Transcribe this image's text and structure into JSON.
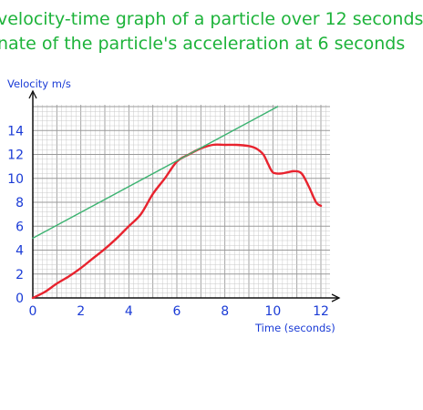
{
  "heading": {
    "line1": "velocity-time graph of a particle over 12 seconds",
    "line2": "nate of the particle's acceleration at 6 seconds"
  },
  "colors": {
    "heading": "#1db33a",
    "labels": "#1a3bd6",
    "curve": "#e8232e",
    "tangent": "#3cb371",
    "grid_minor": "#c8c8c8",
    "grid_major": "#9a9a9a",
    "axes": "#111111"
  },
  "chart_data": {
    "type": "line",
    "title": "",
    "xlabel": "Time (seconds)",
    "ylabel": "Velocity m/s",
    "xlim": [
      0,
      12
    ],
    "ylim": [
      0,
      16
    ],
    "grid": true,
    "x_ticks": [
      0,
      2,
      4,
      6,
      8,
      10,
      12
    ],
    "y_ticks": [
      0,
      2,
      4,
      6,
      8,
      10,
      12,
      14
    ],
    "series": [
      {
        "kind": "curve",
        "color": "#e8232e",
        "x": [
          0,
          0.5,
          1,
          1.5,
          2,
          2.5,
          3,
          3.5,
          4,
          4.5,
          5,
          5.5,
          6,
          6.5,
          7,
          7.5,
          8,
          8.5,
          9,
          9.3,
          9.6,
          9.8,
          10,
          10.3,
          10.6,
          10.9,
          11.2,
          11.5,
          11.8,
          12
        ],
        "y": [
          0,
          0.5,
          1.2,
          1.8,
          2.5,
          3.3,
          4.1,
          5.0,
          6.0,
          7.0,
          8.7,
          10.0,
          11.4,
          12.0,
          12.5,
          12.8,
          12.8,
          12.8,
          12.7,
          12.5,
          12.0,
          11.2,
          10.5,
          10.4,
          10.5,
          10.6,
          10.4,
          9.3,
          8.0,
          7.7
        ]
      },
      {
        "kind": "tangent",
        "color": "#3cb371",
        "x": [
          0,
          10.2
        ],
        "y": [
          5,
          16
        ]
      }
    ]
  }
}
